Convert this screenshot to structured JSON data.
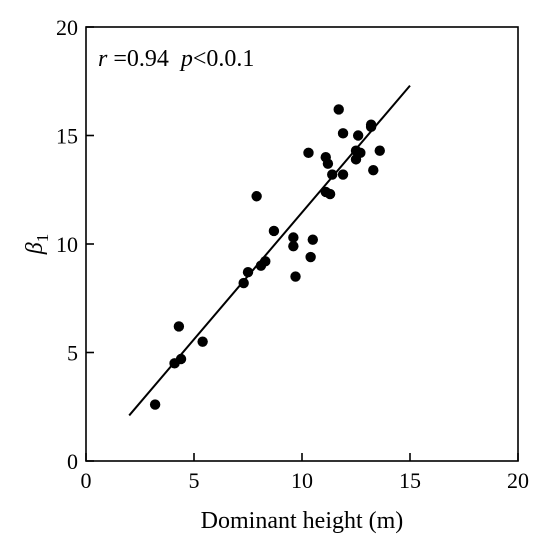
{
  "chart_data": {
    "type": "scatter",
    "title": "",
    "xlabel": "Dominant height (m)",
    "ylabel": "β",
    "ylabel_subscript": "1",
    "xlim": [
      0,
      20
    ],
    "ylim": [
      0,
      20
    ],
    "xticks": [
      0,
      5,
      10,
      15,
      20
    ],
    "yticks": [
      0,
      5,
      10,
      15,
      20
    ],
    "grid": false,
    "annotation": {
      "r_symbol": "r",
      "r_text": " =0.94",
      "p_symbol": "p",
      "p_text": "<0.0.1"
    },
    "points": [
      {
        "x": 3.2,
        "y": 2.6
      },
      {
        "x": 4.1,
        "y": 4.5
      },
      {
        "x": 4.4,
        "y": 4.7
      },
      {
        "x": 4.3,
        "y": 6.2
      },
      {
        "x": 5.4,
        "y": 5.5
      },
      {
        "x": 7.3,
        "y": 8.2
      },
      {
        "x": 7.5,
        "y": 8.7
      },
      {
        "x": 8.1,
        "y": 9.0
      },
      {
        "x": 8.3,
        "y": 9.2
      },
      {
        "x": 7.9,
        "y": 12.2
      },
      {
        "x": 8.7,
        "y": 10.6
      },
      {
        "x": 9.6,
        "y": 9.9
      },
      {
        "x": 9.6,
        "y": 10.3
      },
      {
        "x": 9.7,
        "y": 8.5
      },
      {
        "x": 10.4,
        "y": 9.4
      },
      {
        "x": 10.5,
        "y": 10.2
      },
      {
        "x": 10.3,
        "y": 14.2
      },
      {
        "x": 11.1,
        "y": 14.0
      },
      {
        "x": 11.2,
        "y": 13.7
      },
      {
        "x": 11.1,
        "y": 12.4
      },
      {
        "x": 11.3,
        "y": 12.3
      },
      {
        "x": 11.4,
        "y": 13.2
      },
      {
        "x": 11.7,
        "y": 16.2
      },
      {
        "x": 11.9,
        "y": 15.1
      },
      {
        "x": 11.9,
        "y": 13.2
      },
      {
        "x": 12.5,
        "y": 13.9
      },
      {
        "x": 12.5,
        "y": 14.3
      },
      {
        "x": 12.7,
        "y": 14.2
      },
      {
        "x": 12.6,
        "y": 15.0
      },
      {
        "x": 13.2,
        "y": 15.4
      },
      {
        "x": 13.2,
        "y": 15.5
      },
      {
        "x": 13.3,
        "y": 13.4
      },
      {
        "x": 13.6,
        "y": 14.3
      }
    ],
    "fit_line": {
      "x": [
        2,
        15
      ],
      "y": [
        2.1,
        17.3
      ]
    }
  }
}
